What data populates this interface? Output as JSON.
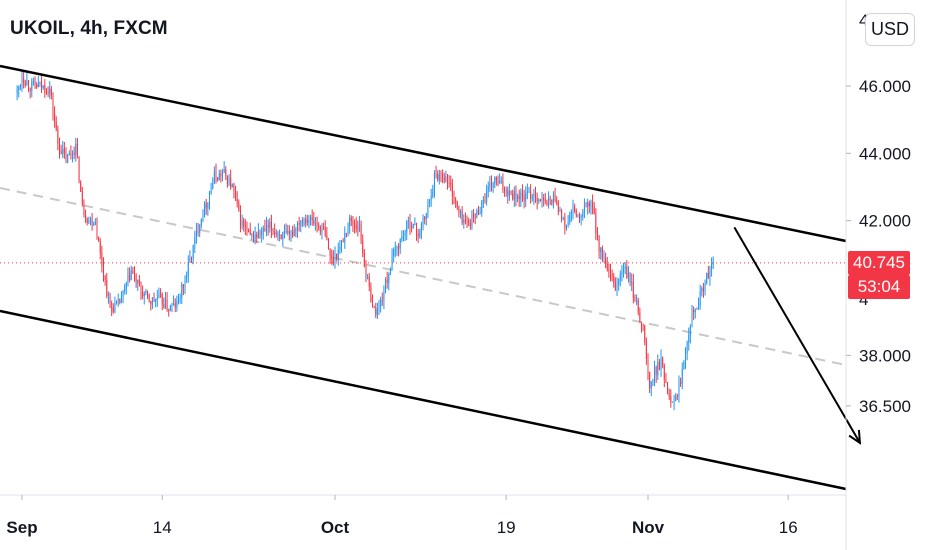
{
  "header": {
    "symbol_title": "UKOIL, 4h, FXCM",
    "currency": "USD"
  },
  "price_badge": {
    "last_price": "40.745",
    "countdown": "53:04"
  },
  "colors": {
    "up": "#2196f3",
    "down": "#f23645",
    "line": "#000000",
    "mid_line": "#c8c8c8",
    "price_line": "#f23645"
  },
  "chart_data": {
    "type": "candlestick",
    "symbol": "UKOIL",
    "timeframe": "4h",
    "source": "FXCM",
    "y_axis": {
      "ticks": [
        46.0,
        44.0,
        42.0,
        38.0,
        36.5
      ],
      "tick_labels": [
        "46.000",
        "44.000",
        "42.000",
        "38.000",
        "36.500"
      ],
      "range": [
        34.6,
        47.6
      ]
    },
    "x_axis": {
      "tick_labels": [
        "Sep",
        "14",
        "Oct",
        "19",
        "Nov",
        "16"
      ],
      "tick_bars": [
        3,
        89,
        195,
        300,
        387,
        473
      ]
    },
    "last_price": 40.745,
    "close_path": [
      [
        0,
        45.8
      ],
      [
        3,
        46.3
      ],
      [
        8,
        46.0
      ],
      [
        14,
        46.0
      ],
      [
        20,
        45.9
      ],
      [
        25,
        44.3
      ],
      [
        30,
        43.8
      ],
      [
        36,
        44.2
      ],
      [
        40,
        42.4
      ],
      [
        44,
        42.0
      ],
      [
        48,
        42.0
      ],
      [
        51,
        41.0
      ],
      [
        57,
        39.4
      ],
      [
        62,
        39.5
      ],
      [
        65,
        39.8
      ],
      [
        70,
        40.5
      ],
      [
        76,
        39.9
      ],
      [
        82,
        39.6
      ],
      [
        87,
        39.7
      ],
      [
        93,
        39.4
      ],
      [
        98,
        39.5
      ],
      [
        102,
        40.1
      ],
      [
        107,
        41.0
      ],
      [
        112,
        42.0
      ],
      [
        116,
        42.5
      ],
      [
        121,
        43.3
      ],
      [
        127,
        43.4
      ],
      [
        132,
        43.0
      ],
      [
        137,
        42.0
      ],
      [
        143,
        41.5
      ],
      [
        149,
        41.6
      ],
      [
        155,
        41.8
      ],
      [
        161,
        41.6
      ],
      [
        167,
        41.5
      ],
      [
        173,
        42.0
      ],
      [
        178,
        42.1
      ],
      [
        183,
        41.9
      ],
      [
        188,
        41.7
      ],
      [
        193,
        40.8
      ],
      [
        198,
        41.2
      ],
      [
        204,
        42.0
      ],
      [
        210,
        41.8
      ],
      [
        214,
        40.4
      ],
      [
        219,
        39.3
      ],
      [
        222,
        39.4
      ],
      [
        226,
        40.1
      ],
      [
        231,
        41.0
      ],
      [
        236,
        41.5
      ],
      [
        241,
        42.0
      ],
      [
        246,
        41.6
      ],
      [
        251,
        42.2
      ],
      [
        256,
        43.3
      ],
      [
        261,
        43.4
      ],
      [
        266,
        43.0
      ],
      [
        271,
        42.2
      ],
      [
        276,
        41.9
      ],
      [
        282,
        42.2
      ],
      [
        288,
        42.8
      ],
      [
        293,
        43.2
      ],
      [
        298,
        43.0
      ],
      [
        304,
        42.8
      ],
      [
        310,
        42.7
      ],
      [
        317,
        42.8
      ],
      [
        324,
        42.5
      ],
      [
        330,
        42.7
      ],
      [
        336,
        41.8
      ],
      [
        341,
        42.3
      ],
      [
        346,
        42.0
      ],
      [
        349,
        42.5
      ],
      [
        353,
        42.4
      ],
      [
        357,
        41.2
      ],
      [
        362,
        40.5
      ],
      [
        367,
        40.0
      ],
      [
        372,
        40.6
      ],
      [
        376,
        40.2
      ],
      [
        380,
        39.5
      ],
      [
        384,
        38.8
      ],
      [
        388,
        37.0
      ],
      [
        391,
        37.5
      ],
      [
        395,
        37.8
      ],
      [
        400,
        36.8
      ],
      [
        404,
        36.7
      ],
      [
        407,
        37.3
      ],
      [
        411,
        38.5
      ],
      [
        414,
        39.3
      ],
      [
        418,
        39.6
      ],
      [
        422,
        40.2
      ],
      [
        427,
        40.7
      ]
    ],
    "channel": {
      "upper": {
        "start": [
          "Sep",
          46.6
        ],
        "end": [
          "Nov 16",
          41.5
        ]
      },
      "lower": {
        "start": [
          "Sep",
          39.8
        ],
        "end": [
          "Nov 16",
          35.0
        ]
      }
    },
    "arrow": {
      "from": [
        440,
        41.8
      ],
      "to": [
        517,
        35.4
      ]
    }
  }
}
